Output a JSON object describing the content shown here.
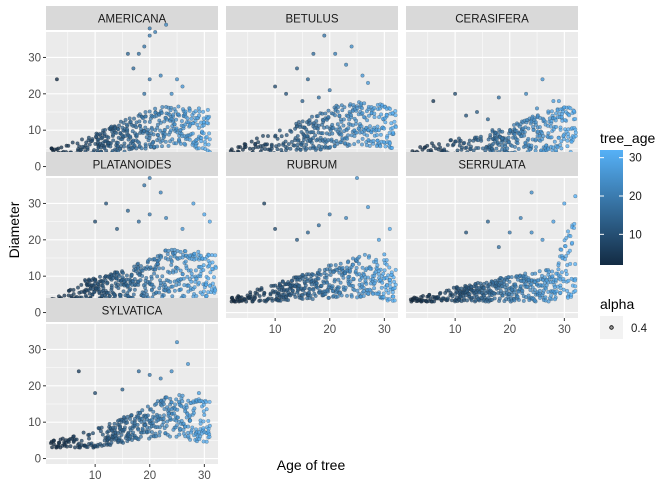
{
  "chart_data": {
    "type": "scatter",
    "xlabel": "Age of tree",
    "ylabel": "Diameter",
    "xlim": [
      1,
      32.5
    ],
    "ylim": [
      -1.5,
      37
    ],
    "x_ticks": [
      "10",
      "20",
      "30"
    ],
    "x_tick_values": [
      10,
      20,
      30
    ],
    "y_ticks": [
      "0",
      "10",
      "20",
      "30"
    ],
    "y_tick_values": [
      0,
      10,
      20,
      30
    ],
    "colorbar": {
      "title": "tree_age",
      "ticks": [
        "10",
        "20",
        "30"
      ],
      "tick_values": [
        10,
        20,
        30
      ],
      "min": 2,
      "max": 32,
      "low_color": "#132B43",
      "high_color": "#56B1F7"
    },
    "size_legend": {
      "title": "alpha",
      "label": "0.4"
    },
    "point_alpha": 0.4,
    "panel_background": "#EBEBEB",
    "strip_background": "#D9D9D9",
    "grid_color": "#FFFFFF",
    "panels": [
      {
        "name": "AMERICANA",
        "x_range": [
          2,
          31
        ],
        "dense_start_x": 10,
        "bands": [
          [
            2,
            3,
            5
          ],
          [
            10,
            3,
            9
          ],
          [
            20,
            5,
            16
          ],
          [
            26,
            6,
            17
          ],
          [
            31,
            4,
            16
          ]
        ],
        "outliers": [
          [
            3,
            24
          ],
          [
            2,
            5
          ],
          [
            16,
            31
          ],
          [
            18,
            31
          ],
          [
            19,
            33
          ],
          [
            20,
            36
          ],
          [
            20,
            38
          ],
          [
            21,
            37
          ],
          [
            23,
            39
          ],
          [
            22,
            25
          ],
          [
            17,
            27
          ],
          [
            20,
            24
          ],
          [
            25,
            24
          ],
          [
            24,
            20
          ],
          [
            26,
            22
          ],
          [
            19,
            20
          ],
          [
            31,
            4
          ],
          [
            29,
            16
          ]
        ]
      },
      {
        "name": "BETULUS",
        "x_range": [
          2,
          32
        ],
        "dense_start_x": 14,
        "bands": [
          [
            2,
            3,
            5
          ],
          [
            10,
            3,
            10
          ],
          [
            20,
            5,
            16
          ],
          [
            25,
            6,
            19
          ],
          [
            32,
            5,
            16
          ]
        ],
        "outliers": [
          [
            10,
            22
          ],
          [
            12,
            20
          ],
          [
            14,
            27
          ],
          [
            16,
            24
          ],
          [
            17,
            31
          ],
          [
            19,
            36
          ],
          [
            21,
            31
          ],
          [
            23,
            28
          ],
          [
            24,
            33
          ],
          [
            18,
            19
          ],
          [
            26,
            25
          ],
          [
            27,
            23
          ],
          [
            20,
            21
          ],
          [
            15,
            18
          ],
          [
            29,
            10
          ],
          [
            31,
            3
          ]
        ]
      },
      {
        "name": "CERASIFERA",
        "x_range": [
          2,
          32
        ],
        "dense_start_x": 16,
        "bands": [
          [
            2,
            2,
            5
          ],
          [
            10,
            3,
            8
          ],
          [
            20,
            3,
            11
          ],
          [
            26,
            4,
            15
          ],
          [
            32,
            4,
            17
          ]
        ],
        "outliers": [
          [
            6,
            18
          ],
          [
            10,
            20
          ],
          [
            12,
            14
          ],
          [
            14,
            15
          ],
          [
            16,
            13
          ],
          [
            18,
            19
          ],
          [
            23,
            20
          ],
          [
            25,
            16
          ],
          [
            28,
            18
          ],
          [
            26,
            24
          ],
          [
            29,
            18
          ],
          [
            31,
            1
          ]
        ]
      },
      {
        "name": "PLATANOIDES",
        "x_range": [
          2,
          32
        ],
        "dense_start_x": 8,
        "bands": [
          [
            2,
            3,
            4
          ],
          [
            8,
            3,
            9
          ],
          [
            16,
            4,
            12
          ],
          [
            24,
            4,
            18
          ],
          [
            32,
            4,
            16
          ]
        ],
        "outliers": [
          [
            10,
            25
          ],
          [
            12,
            30
          ],
          [
            14,
            23
          ],
          [
            16,
            28
          ],
          [
            18,
            25
          ],
          [
            19,
            35
          ],
          [
            20,
            37
          ],
          [
            22,
            33
          ],
          [
            20,
            27
          ],
          [
            23,
            26
          ],
          [
            26,
            23
          ],
          [
            28,
            30
          ],
          [
            30,
            27
          ],
          [
            31,
            25
          ]
        ]
      },
      {
        "name": "RUBRUM",
        "x_range": [
          2,
          32
        ],
        "dense_start_x": 10,
        "bands": [
          [
            2,
            3,
            4
          ],
          [
            10,
            3,
            8
          ],
          [
            20,
            4,
            13
          ],
          [
            26,
            4,
            16
          ],
          [
            32,
            3,
            14
          ]
        ],
        "outliers": [
          [
            8,
            30
          ],
          [
            10,
            23
          ],
          [
            14,
            20
          ],
          [
            16,
            22
          ],
          [
            18,
            24
          ],
          [
            20,
            27
          ],
          [
            23,
            26
          ],
          [
            25,
            37
          ],
          [
            27,
            29
          ],
          [
            29,
            20
          ],
          [
            31,
            23
          ],
          [
            30,
            16
          ]
        ]
      },
      {
        "name": "SERRULATA",
        "x_range": [
          2,
          32
        ],
        "dense_start_x": 10,
        "bands": [
          [
            2,
            3,
            4
          ],
          [
            10,
            3,
            7
          ],
          [
            20,
            3,
            10
          ],
          [
            28,
            3,
            12
          ],
          [
            32,
            4,
            28
          ]
        ],
        "outliers": [
          [
            12,
            22
          ],
          [
            16,
            25
          ],
          [
            18,
            18
          ],
          [
            20,
            22
          ],
          [
            22,
            26
          ],
          [
            24,
            22
          ],
          [
            26,
            20
          ],
          [
            28,
            25
          ],
          [
            24,
            33
          ],
          [
            30,
            30
          ],
          [
            32,
            32
          ]
        ]
      },
      {
        "name": "SYLVATICA",
        "x_range": [
          2,
          31
        ],
        "dense_start_x": 12,
        "bands": [
          [
            2,
            3,
            5
          ],
          [
            10,
            3,
            8
          ],
          [
            18,
            5,
            13
          ],
          [
            24,
            6,
            18
          ],
          [
            31,
            4,
            16
          ]
        ],
        "outliers": [
          [
            7,
            24
          ],
          [
            10,
            18
          ],
          [
            15,
            19
          ],
          [
            18,
            24
          ],
          [
            20,
            23
          ],
          [
            22,
            22
          ],
          [
            24,
            24
          ],
          [
            25,
            32
          ],
          [
            27,
            26
          ],
          [
            29,
            18
          ],
          [
            30,
            12
          ],
          [
            31,
            9
          ]
        ]
      }
    ]
  }
}
